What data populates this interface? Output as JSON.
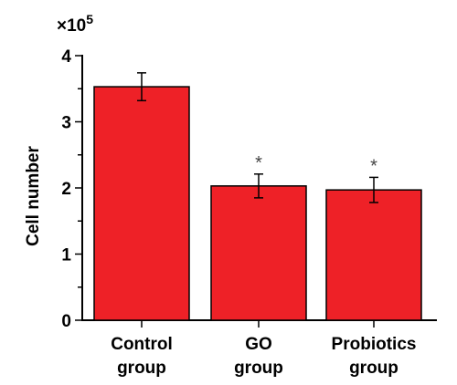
{
  "chart_data": {
    "type": "bar",
    "categories": [
      [
        "Control",
        "group"
      ],
      [
        "GO",
        "group"
      ],
      [
        "Probiotics",
        "group"
      ]
    ],
    "values": [
      3.53,
      2.03,
      1.97
    ],
    "errors": [
      0.21,
      0.18,
      0.19
    ],
    "significance": [
      "",
      "*",
      "*"
    ],
    "ylabel": "Cell number",
    "y_scale_base": "×10",
    "y_scale_exponent": "5",
    "ylim": [
      0,
      4
    ],
    "yticks": [
      0,
      1,
      2,
      3,
      4
    ],
    "bar_color": "#ee2127",
    "grid": false,
    "legend": "none"
  }
}
